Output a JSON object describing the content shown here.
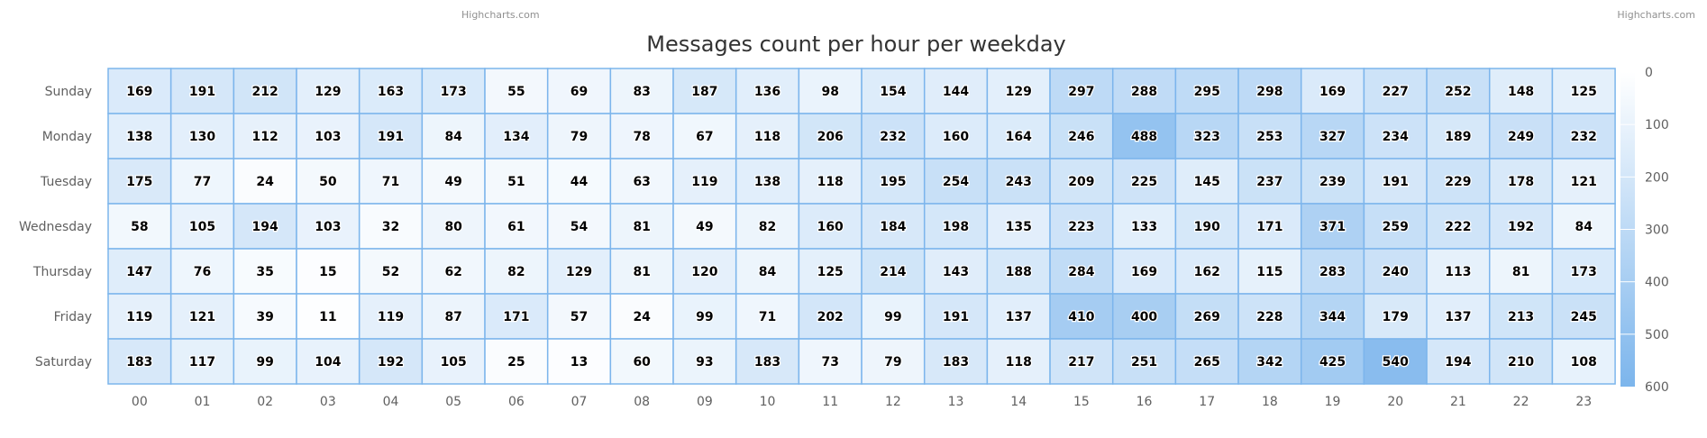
{
  "credits": {
    "left": "Highcharts.com",
    "right": "Highcharts.com"
  },
  "chart_data": {
    "type": "heatmap",
    "title": "Messages count per hour per weekday",
    "x_categories": [
      "00",
      "01",
      "02",
      "03",
      "04",
      "05",
      "06",
      "07",
      "08",
      "09",
      "10",
      "11",
      "12",
      "13",
      "14",
      "15",
      "16",
      "17",
      "18",
      "19",
      "20",
      "21",
      "22",
      "23"
    ],
    "y_categories": [
      "Sunday",
      "Monday",
      "Tuesday",
      "Wednesday",
      "Thursday",
      "Friday",
      "Saturday"
    ],
    "values": [
      [
        169,
        191,
        212,
        129,
        163,
        173,
        55,
        69,
        83,
        187,
        136,
        98,
        154,
        144,
        129,
        297,
        288,
        295,
        298,
        169,
        227,
        252,
        148,
        125
      ],
      [
        138,
        130,
        112,
        103,
        191,
        84,
        134,
        79,
        78,
        67,
        118,
        206,
        232,
        160,
        164,
        246,
        488,
        323,
        253,
        327,
        234,
        189,
        249,
        232
      ],
      [
        175,
        77,
        24,
        50,
        71,
        49,
        51,
        44,
        63,
        119,
        138,
        118,
        195,
        254,
        243,
        209,
        225,
        145,
        237,
        239,
        191,
        229,
        178,
        121
      ],
      [
        58,
        105,
        194,
        103,
        32,
        80,
        61,
        54,
        81,
        49,
        82,
        160,
        184,
        198,
        135,
        223,
        133,
        190,
        171,
        371,
        259,
        222,
        192,
        84
      ],
      [
        147,
        76,
        35,
        15,
        52,
        62,
        82,
        129,
        81,
        120,
        84,
        125,
        214,
        143,
        188,
        284,
        169,
        162,
        115,
        283,
        240,
        113,
        81,
        173
      ],
      [
        119,
        121,
        39,
        11,
        119,
        87,
        171,
        57,
        24,
        99,
        71,
        202,
        99,
        191,
        137,
        410,
        400,
        269,
        228,
        344,
        179,
        137,
        213,
        245
      ],
      [
        183,
        117,
        99,
        104,
        192,
        105,
        25,
        13,
        60,
        93,
        183,
        73,
        79,
        183,
        118,
        217,
        251,
        265,
        342,
        425,
        540,
        194,
        210,
        108
      ]
    ],
    "color_axis": {
      "min": 0,
      "max": 600,
      "ticks": [
        0,
        100,
        200,
        300,
        400,
        500,
        600
      ],
      "min_color": "#ffffff",
      "max_color": "#7cb5ec"
    },
    "cell_border_color": "#7cb5ec",
    "legend_position": "right"
  }
}
